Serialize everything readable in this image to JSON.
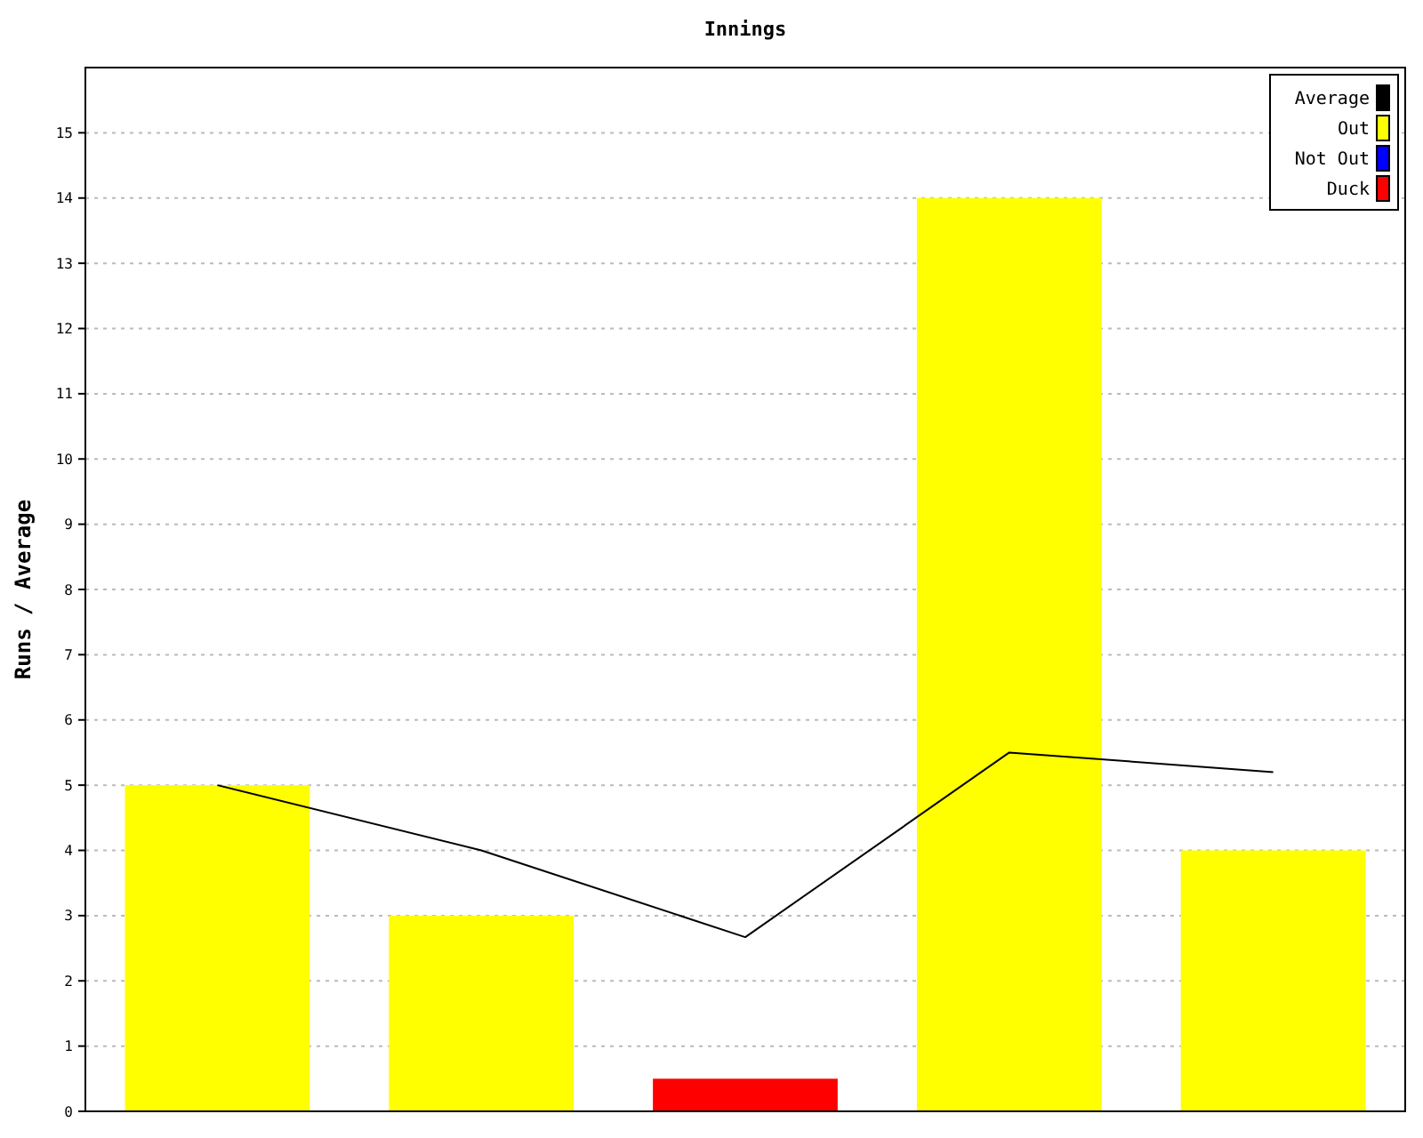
{
  "chart_data": {
    "type": "bar",
    "title": "Innings",
    "ylabel": "Runs / Average",
    "categories": [
      null,
      null,
      null,
      null,
      null
    ],
    "ylim": [
      0,
      16
    ],
    "yticks": [
      0,
      1,
      2,
      3,
      4,
      5,
      6,
      7,
      8,
      9,
      10,
      11,
      12,
      13,
      14,
      15
    ],
    "grid": "y",
    "legend": "top right",
    "tick_labels": "y",
    "series": [
      {
        "name": "Average",
        "type": "line",
        "color": "#000000",
        "values": [
          5,
          4,
          2.67,
          5.5,
          5.2
        ]
      },
      {
        "name": "Out",
        "color": "#ffff00",
        "values": [
          5,
          3,
          null,
          14,
          4
        ]
      },
      {
        "name": "Not Out",
        "color": "#0000ff",
        "values": [
          null,
          null,
          null,
          null,
          null
        ]
      },
      {
        "name": "Duck",
        "color": "#ff0000",
        "values": [
          null,
          null,
          0.5,
          null,
          null
        ]
      }
    ]
  }
}
